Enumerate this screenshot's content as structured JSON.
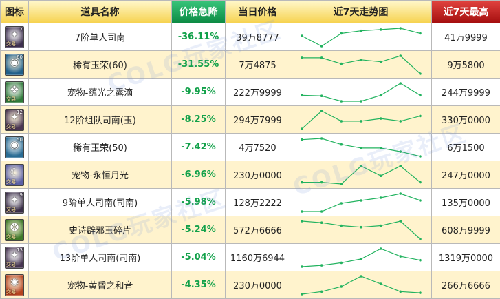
{
  "headers": {
    "icon": "图标",
    "name": "道具名称",
    "change": "价格急降",
    "price": "当日价格",
    "trend": "近7天走势图",
    "high": "近7天最高"
  },
  "watermark_text": "COLG玩家社区",
  "colors": {
    "change_text": "#12a14a",
    "trend_line": "#22b35f",
    "row_alt": "#fff3cd",
    "header_change": "#0c8a43",
    "header_high": "#a40e0e",
    "header_default": "#f6d24e"
  },
  "rows": [
    {
      "icon": "sword-icon",
      "icon_bg": "#3d2f4f",
      "glyph": "✦",
      "tag": "交易",
      "lvl": "7",
      "name": "7阶单人司南",
      "change": "-36.11%",
      "price": "39万8777",
      "high": "41万9999",
      "trend": [
        5,
        1,
        6,
        7,
        7.5,
        8,
        6
      ]
    },
    {
      "icon": "jade-orb-icon",
      "icon_bg": "#1f5f8a",
      "glyph": "◉",
      "tag": "",
      "lvl": "60",
      "name": "稀有玉荣(60)",
      "change": "-31.55%",
      "price": "7万4875",
      "high": "9万5800",
      "trend": [
        7.5,
        7.5,
        6,
        7,
        6.5,
        8,
        3.5
      ]
    },
    {
      "icon": "dew-drop-icon",
      "icon_bg": "#2f7a3a",
      "glyph": "❖",
      "tag": "交易",
      "lvl": "",
      "name": "宠物-蕴光之露滴",
      "change": "-9.95%",
      "price": "222万9999",
      "high": "244万9999",
      "trend": [
        4,
        3.8,
        2,
        2,
        4,
        8,
        4
      ]
    },
    {
      "icon": "sword-icon",
      "icon_bg": "#4a3552",
      "glyph": "✦",
      "tag": "交易",
      "lvl": "12",
      "name": "12阶组队司南(玉)",
      "change": "-8.25%",
      "price": "294万7999",
      "high": "330万0000",
      "trend": [
        1,
        8,
        4,
        4,
        5,
        4,
        6
      ]
    },
    {
      "icon": "jade-orb-icon",
      "icon_bg": "#2a6c94",
      "glyph": "◉",
      "tag": "",
      "lvl": "50",
      "name": "稀有玉荣(50)",
      "change": "-7.42%",
      "price": "4万7520",
      "high": "6万1500",
      "trend": [
        8,
        8.5,
        6,
        4.5,
        4.5,
        3,
        1
      ]
    },
    {
      "icon": "moonlight-icon",
      "icon_bg": "#5a5fa6",
      "glyph": "☾",
      "tag": "交易",
      "lvl": "",
      "name": "宠物-永恒月光",
      "change": "-6.96%",
      "price": "230万0000",
      "high": "247万0000",
      "trend": [
        3,
        3,
        2.5,
        8,
        5,
        8,
        3
      ]
    },
    {
      "icon": "sword-icon",
      "icon_bg": "#3a2e48",
      "glyph": "✦",
      "tag": "交易",
      "lvl": "9",
      "name": "9阶单人司南(司南)",
      "change": "-5.98%",
      "price": "128万2222",
      "high": "135万0000",
      "trend": [
        1,
        1,
        4,
        5,
        6,
        7.5,
        5
      ]
    },
    {
      "icon": "jade-fragment-icon",
      "icon_bg": "#3f7a2a",
      "glyph": "❂",
      "tag": "交易",
      "lvl": "",
      "name": "史诗辟邪玉碎片",
      "change": "-5.24%",
      "price": "572万6666",
      "high": "608万9999",
      "trend": [
        7,
        6.5,
        5.5,
        5,
        5.5,
        7,
        1
      ]
    },
    {
      "icon": "sword-icon",
      "icon_bg": "#463451",
      "glyph": "✦",
      "tag": "交易",
      "lvl": "13",
      "name": "13阶单人司南(司南)",
      "change": "-5.04%",
      "price": "1160万6944",
      "high": "1319万0000",
      "trend": [
        1,
        1.5,
        2.5,
        4,
        8,
        5,
        3.5
      ]
    },
    {
      "icon": "harmony-icon",
      "icon_bg": "#b5421f",
      "glyph": "✺",
      "tag": "交易",
      "lvl": "",
      "name": "宠物-黄昏之和音",
      "change": "-4.35%",
      "price": "230万0000",
      "high": "266万6666",
      "trend": [
        1,
        2,
        4,
        8,
        5,
        2,
        1.5
      ]
    }
  ]
}
